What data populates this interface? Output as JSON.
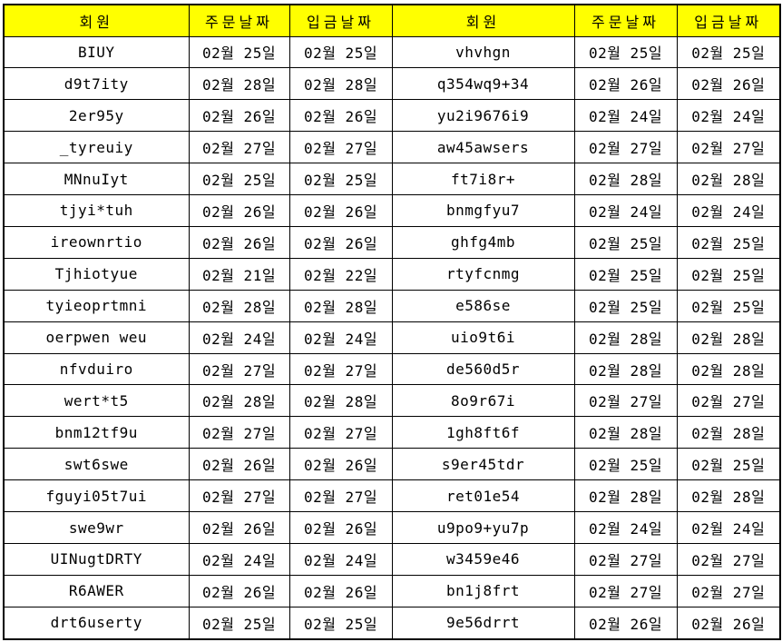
{
  "colors": {
    "header_bg": "#ffff00",
    "border": "#000000",
    "text": "#000000",
    "cell_bg": "#ffffff"
  },
  "table": {
    "headers": [
      "회원",
      "주문날짜",
      "입금날짜",
      "회원",
      "주문날짜",
      "입금날짜"
    ],
    "rows": [
      [
        "BIUY",
        "02월 25일",
        "02월 25일",
        "vhvhgn",
        "02월 25일",
        "02월 25일"
      ],
      [
        "d9t7ity",
        "02월 28일",
        "02월 28일",
        "q354wq9+34",
        "02월 26일",
        "02월 26일"
      ],
      [
        "2er95y",
        "02월 26일",
        "02월 26일",
        "yu2i9676i9",
        "02월 24일",
        "02월 24일"
      ],
      [
        "_tyreuiy",
        "02월 27일",
        "02월 27일",
        "aw45awsers",
        "02월 27일",
        "02월 27일"
      ],
      [
        "MNnuIyt",
        "02월 25일",
        "02월 25일",
        "ft7i8r+",
        "02월 28일",
        "02월 28일"
      ],
      [
        "tjyi*tuh",
        "02월 26일",
        "02월 26일",
        "bnmgfyu7",
        "02월 24일",
        "02월 24일"
      ],
      [
        "ireownrtio",
        "02월 26일",
        "02월 26일",
        "ghfg4mb",
        "02월 25일",
        "02월 25일"
      ],
      [
        "Tjhiotyue",
        "02월 21일",
        "02월 22일",
        "rtyfcnmg",
        "02월 25일",
        "02월 25일"
      ],
      [
        "tyieoprtmni",
        "02월 28일",
        "02월 28일",
        "e586se",
        "02월 25일",
        "02월 25일"
      ],
      [
        "oerpwen weu",
        "02월 24일",
        "02월 24일",
        "uio9t6i",
        "02월 28일",
        "02월 28일"
      ],
      [
        "nfvduiro",
        "02월 27일",
        "02월 27일",
        "de560d5r",
        "02월 28일",
        "02월 28일"
      ],
      [
        "wert*t5",
        "02월 28일",
        "02월 28일",
        "8o9r67i",
        "02월 27일",
        "02월 27일"
      ],
      [
        "bnm12tf9u",
        "02월 27일",
        "02월 27일",
        "1gh8ft6f",
        "02월 28일",
        "02월 28일"
      ],
      [
        "swt6swe",
        "02월 26일",
        "02월 26일",
        "s9er45tdr",
        "02월 25일",
        "02월 25일"
      ],
      [
        "fguyi05t7ui",
        "02월 27일",
        "02월 27일",
        "ret01e54",
        "02월 28일",
        "02월 28일"
      ],
      [
        "swe9wr",
        "02월 26일",
        "02월 26일",
        "u9po9+yu7p",
        "02월 24일",
        "02월 24일"
      ],
      [
        "UINugtDRTY",
        "02월 24일",
        "02월 24일",
        "w3459e46",
        "02월 27일",
        "02월 27일"
      ],
      [
        "R6AWER",
        "02월 26일",
        "02월 26일",
        "bn1j8frt",
        "02월 27일",
        "02월 27일"
      ],
      [
        "drt6userty",
        "02월 25일",
        "02월 25일",
        "9e56drrt",
        "02월 26일",
        "02월 26일"
      ]
    ]
  }
}
